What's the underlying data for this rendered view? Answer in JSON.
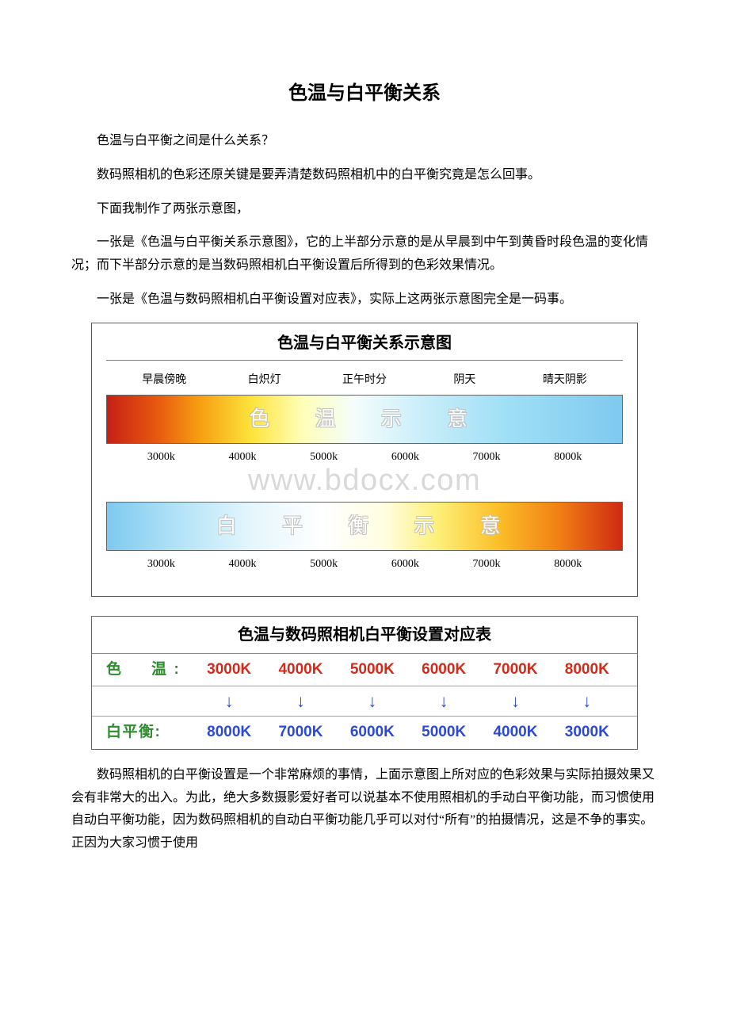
{
  "doc": {
    "title": "色温与白平衡关系",
    "p1": "色温与白平衡之间是什么关系？",
    "p2": "数码照相机的色彩还原关键是要弄清楚数码照相机中的白平衡究竟是怎么回事。",
    "p3": "下面我制作了两张示意图，",
    "p4": "一张是《色温与白平衡关系示意图》，它的上半部分示意的是从早晨到中午到黄昏时段色温的变化情况；而下半部分示意的是当数码照相机白平衡设置后所得到的色彩效果情况。",
    "p5": "一张是《色温与数码照相机白平衡设置对应表》，实际上这两张示意图完全是一码事。",
    "p6": "数码照相机的白平衡设置是一个非常麻烦的事情，上面示意图上所对应的色彩效果与实际拍摄效果又会有非常大的出入。为此，绝大多数摄影爱好者可以说基本不使用照相机的手动白平衡功能，而习惯使用自动白平衡功能，因为数码照相机的自动白平衡功能几乎可以对付“所有”的拍摄情况，这是不争的事实。正因为大家习惯于使用"
  },
  "diagram1": {
    "title": "色温与白平衡关系示意图",
    "conditions": [
      "早晨傍晚",
      "白炽灯",
      "正午时分",
      "阴天",
      "晴天阴影"
    ],
    "ghost_top": "色　温　示　意",
    "ghost_bottom": "白　平　衡　示　意",
    "watermark": "www.bdocx.com",
    "ticks": [
      "3000k",
      "4000k",
      "5000k",
      "6000k",
      "7000k",
      "8000k"
    ],
    "grad_top_colors": [
      "#c62015",
      "#e85a10",
      "#f79e12",
      "#fde33a",
      "#feffb8",
      "#f4fdfb",
      "#c7edf9",
      "#9fdff6",
      "#7fc9ef"
    ],
    "grad_bottom_colors": [
      "#7fc9ef",
      "#b3e3f7",
      "#e4f6fc",
      "#ffffff",
      "#fffde0",
      "#fdf07a",
      "#fbbf28",
      "#f07e14",
      "#cf2a12"
    ]
  },
  "diagram2": {
    "title": "色温与数码照相机白平衡设置对应表",
    "row1_label": "色　温:",
    "row3_label": "白平衡:",
    "row1_values": [
      "3000K",
      "4000K",
      "5000K",
      "6000K",
      "7000K",
      "8000K"
    ],
    "row3_values": [
      "8000K",
      "7000K",
      "6000K",
      "5000K",
      "4000K",
      "3000K"
    ],
    "arrow": "↓",
    "colors": {
      "label1": "#2e8b2e",
      "label2": "#2e8b2e",
      "row1_text": "#d42a1a",
      "row3_text": "#2b49d6",
      "arrow": "#2b49d6"
    }
  }
}
